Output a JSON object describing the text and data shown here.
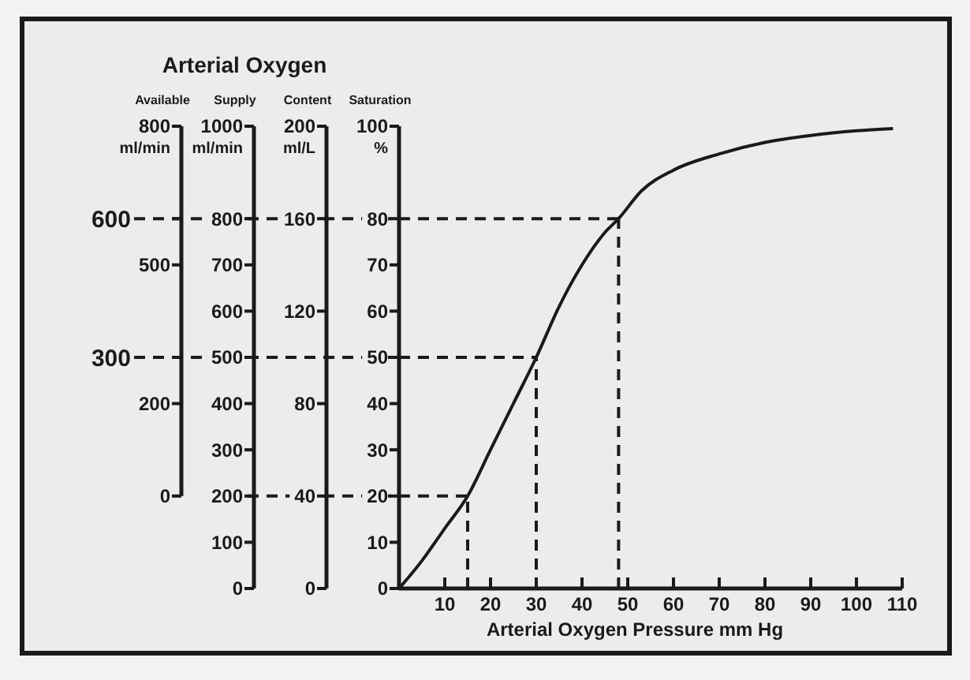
{
  "chart_data": [
    {
      "type": "line",
      "title": "Arterial Oxygen",
      "xlabel": "Arterial Oxygen Pressure mm Hg",
      "ylabel": "Saturation",
      "y2label": "Content",
      "y3label": "Supply",
      "annotations": [
        "%",
        "ml/L",
        "ml/min"
      ],
      "x": [
        0,
        5,
        10,
        15,
        20,
        25,
        30,
        35,
        40,
        45,
        48,
        53,
        60,
        70,
        80,
        90,
        100,
        108
      ],
      "series": [
        {
          "color": "#1a1a1a",
          "values": [
            0,
            6,
            13,
            20,
            30,
            40,
            50,
            61,
            70,
            77,
            80,
            86,
            90.5,
            94,
            96.5,
            98,
            99,
            99.5
          ]
        }
      ],
      "xlim": [
        0,
        110
      ],
      "xticks": [
        10,
        20,
        30,
        40,
        50,
        60,
        70,
        80,
        90,
        100,
        110
      ],
      "ylim": [
        0,
        100
      ],
      "yticks": [
        0,
        10,
        20,
        30,
        40,
        50,
        60,
        70,
        80,
        100
      ],
      "y2lim": [
        0,
        200
      ],
      "y2ticks": [
        0,
        40,
        80,
        120,
        160,
        200
      ],
      "y3lim": [
        0,
        1000
      ],
      "y3ticks": [
        0,
        100,
        200,
        300,
        400,
        500,
        600,
        700,
        800,
        1000
      ],
      "ref_lines": [
        {
          "axis": "y",
          "value": 80,
          "line_style": "dashed"
        },
        {
          "axis": "y",
          "value": 50,
          "line_style": "dashed"
        },
        {
          "axis": "y",
          "value": 20,
          "line_style": "dashed"
        },
        {
          "axis": "x",
          "value": 15,
          "line_style": "dashed"
        },
        {
          "axis": "x",
          "value": 30,
          "line_style": "dashed"
        },
        {
          "axis": "x",
          "value": 48,
          "line_style": "dashed"
        }
      ],
      "grid": false,
      "marker": "none",
      "line_style": "solid"
    },
    {
      "type": "other",
      "ylabel": "Available",
      "annotations": [
        "ml/min",
        "800",
        "600",
        "500",
        "300",
        "200",
        "0"
      ]
    }
  ]
}
